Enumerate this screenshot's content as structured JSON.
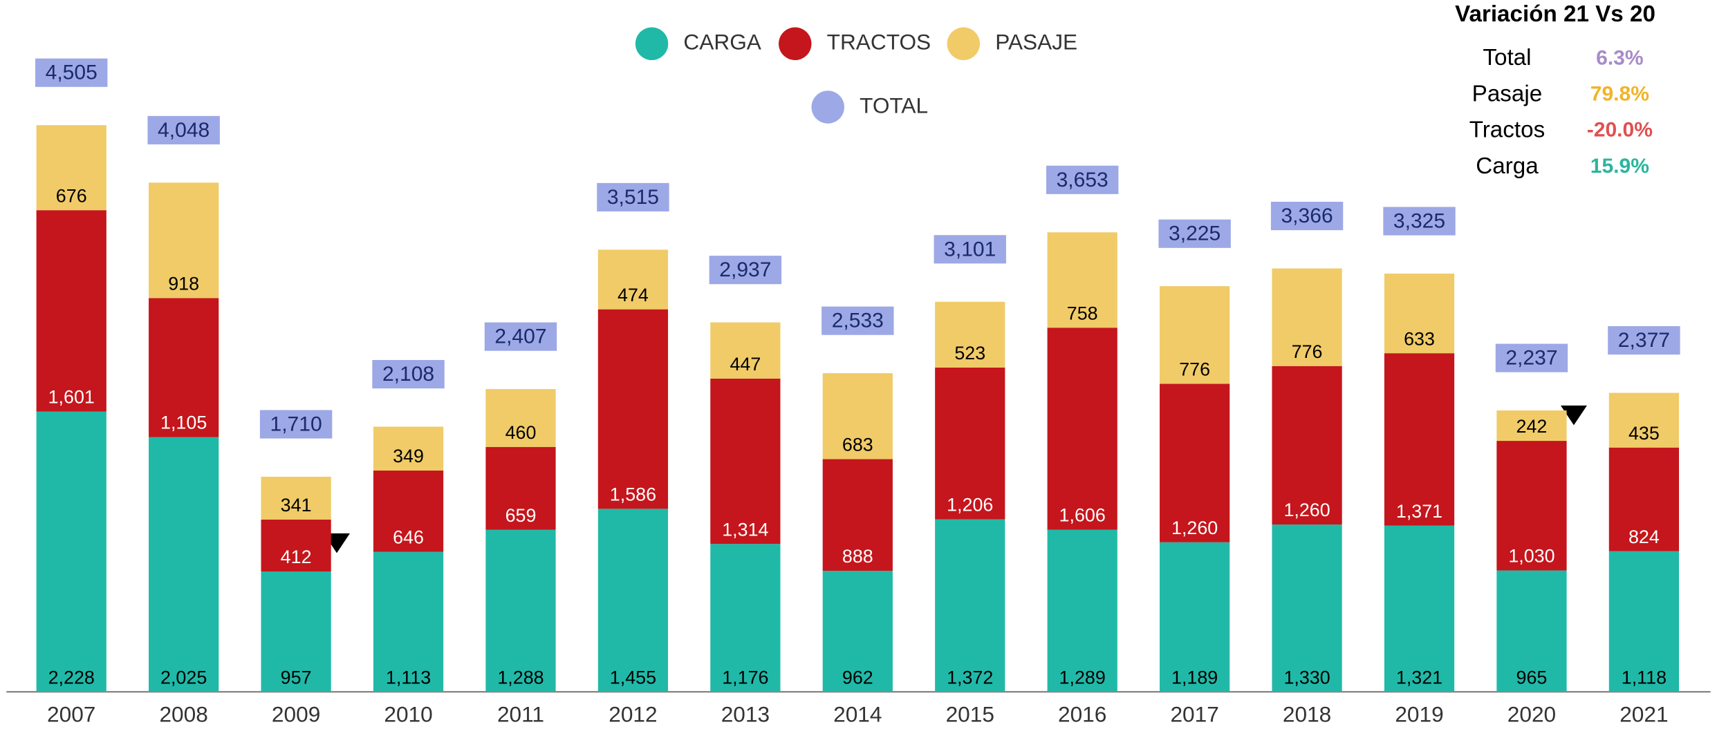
{
  "chart_data": {
    "type": "stacked_bar",
    "categories": [
      "2007",
      "2008",
      "2009",
      "2010",
      "2011",
      "2012",
      "2013",
      "2014",
      "2015",
      "2016",
      "2017",
      "2018",
      "2019",
      "2020",
      "2021"
    ],
    "ylim": [
      0,
      5500
    ],
    "series": [
      {
        "name": "CARGA",
        "color": "#20b9a8",
        "values": [
          2228,
          2025,
          957,
          1113,
          1288,
          1455,
          1176,
          962,
          1372,
          1289,
          1189,
          1330,
          1321,
          965,
          1118
        ],
        "value_labels": [
          "2,228",
          "2,025",
          "957",
          "1,113",
          "1,288",
          "1,455",
          "1,176",
          "962",
          "1,372",
          "1,289",
          "1,189",
          "1,330",
          "1,321",
          "965",
          "1,118"
        ]
      },
      {
        "name": "TRACTOS",
        "color": "#c4161c",
        "values": [
          1601,
          1105,
          412,
          646,
          659,
          1586,
          1314,
          888,
          1206,
          1606,
          1260,
          1260,
          1371,
          1030,
          824
        ],
        "value_labels": [
          "1,601",
          "1,105",
          "412",
          "646",
          "659",
          "1,586",
          "1,314",
          "888",
          "1,206",
          "1,606",
          "1,260",
          "1,260",
          "1,371",
          "1,030",
          "824"
        ]
      },
      {
        "name": "PASAJE",
        "color": "#f0cb68",
        "values": [
          676,
          918,
          341,
          349,
          460,
          474,
          447,
          683,
          523,
          758,
          776,
          776,
          633,
          242,
          435
        ],
        "value_labels": [
          "676",
          "918",
          "341",
          "349",
          "460",
          "474",
          "447",
          "683",
          "523",
          "758",
          "776",
          "776",
          "633",
          "242",
          "435"
        ]
      }
    ],
    "totals": {
      "name": "TOTAL",
      "color": "#9da8e6",
      "values": [
        4505,
        4048,
        1710,
        2108,
        2407,
        3515,
        2937,
        2533,
        3101,
        3653,
        3225,
        3366,
        3325,
        2237,
        2377
      ],
      "value_labels": [
        "4,505",
        "4,048",
        "1,710",
        "2,108",
        "2,407",
        "3,515",
        "2,937",
        "2,533",
        "3,101",
        "3,653",
        "3,225",
        "3,366",
        "3,325",
        "2,237",
        "2,377"
      ]
    },
    "variation": {
      "title": "Variación 21 Vs 20",
      "rows": [
        {
          "label": "Total",
          "value": "6.3%",
          "color": "#a78bc9"
        },
        {
          "label": "Pasaje",
          "value": "79.8%",
          "color": "#f0b429"
        },
        {
          "label": "Tractos",
          "value": "-20.0%",
          "color": "#e05050"
        },
        {
          "label": "Carga",
          "value": "15.9%",
          "color": "#2ab59e"
        }
      ]
    }
  }
}
